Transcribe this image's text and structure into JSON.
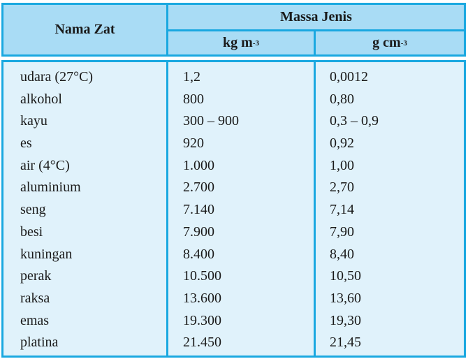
{
  "table": {
    "headers": {
      "name": "Nama Zat",
      "group": "Massa Jenis",
      "unit_kg": "kg m",
      "unit_kg_exp": "-3",
      "unit_g": "g cm",
      "unit_g_exp": "-3"
    },
    "rows": [
      {
        "name": "udara (27°C)",
        "kg_m3": "1,2",
        "g_cm3": "0,0012"
      },
      {
        "name": "alkohol",
        "kg_m3": "800",
        "g_cm3": "0,80"
      },
      {
        "name": "kayu",
        "kg_m3": "300 – 900",
        "g_cm3": "0,3 – 0,9"
      },
      {
        "name": "es",
        "kg_m3": "920",
        "g_cm3": "0,92"
      },
      {
        "name": "air (4°C)",
        "kg_m3": "1.000",
        "g_cm3": "1,00"
      },
      {
        "name": "aluminium",
        "kg_m3": "2.700",
        "g_cm3": "2,70"
      },
      {
        "name": "seng",
        "kg_m3": "7.140",
        "g_cm3": "7,14"
      },
      {
        "name": "besi",
        "kg_m3": "7.900",
        "g_cm3": "7,90"
      },
      {
        "name": "kuningan",
        "kg_m3": "8.400",
        "g_cm3": "8,40"
      },
      {
        "name": "perak",
        "kg_m3": "10.500",
        "g_cm3": "10,50"
      },
      {
        "name": "raksa",
        "kg_m3": "13.600",
        "g_cm3": "13,60"
      },
      {
        "name": "emas",
        "kg_m3": "19.300",
        "g_cm3": "19,30"
      },
      {
        "name": "platina",
        "kg_m3": "21.450",
        "g_cm3": "21,45"
      }
    ]
  },
  "colors": {
    "border": "#1aa8e0",
    "header_bg": "#a9dcf5",
    "body_bg": "#e0f2fb"
  }
}
